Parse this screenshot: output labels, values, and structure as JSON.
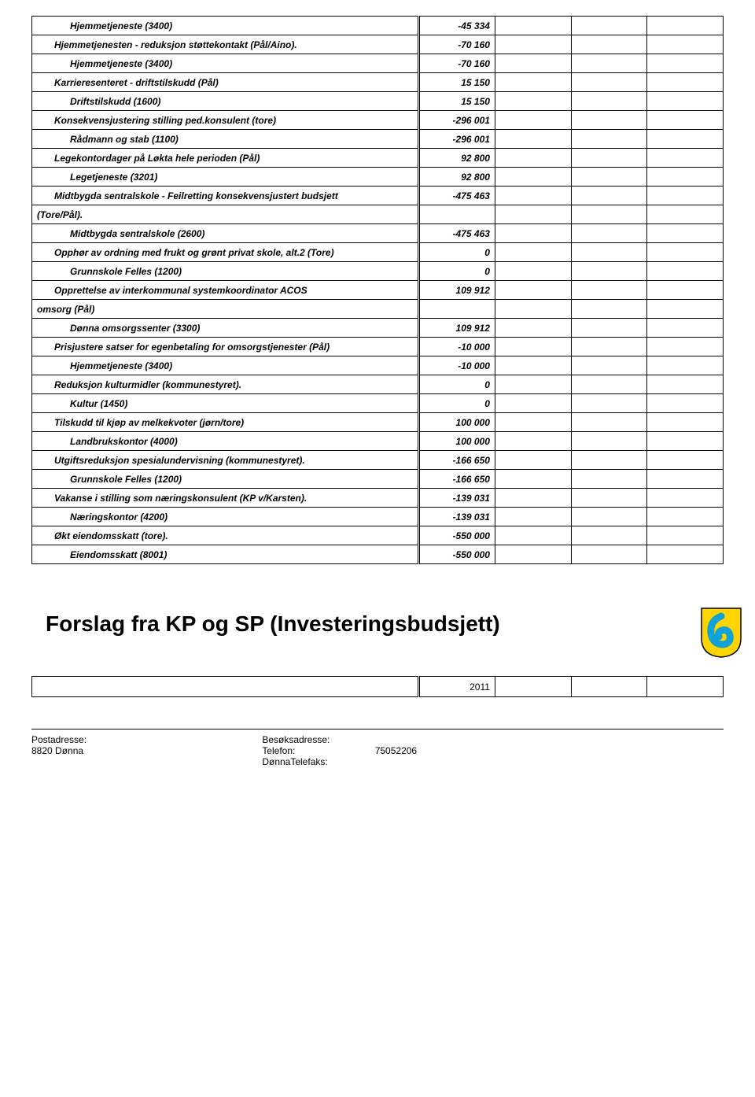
{
  "rows": [
    {
      "label": "Hjemmetjeneste (3400)",
      "value": "-45 334",
      "style": "bold-italic indent-2"
    },
    {
      "label": "Hjemmetjenesten - reduksjon støttekontakt (Pål/Aino).",
      "value": "-70 160",
      "style": "bold-italic indent-1"
    },
    {
      "label": "Hjemmetjeneste (3400)",
      "value": "-70 160",
      "style": "bold-italic indent-2"
    },
    {
      "label": "Karrieresenteret - driftstilskudd (Pål)",
      "value": "15 150",
      "style": "bold-italic indent-1"
    },
    {
      "label": "Driftstilskudd (1600)",
      "value": "15 150",
      "style": "bold-italic indent-2"
    },
    {
      "label": "Konsekvensjustering stilling ped.konsulent (tore)",
      "value": "-296 001",
      "style": "bold-italic indent-1"
    },
    {
      "label": "Rådmann og stab (1100)",
      "value": "-296 001",
      "style": "bold-italic indent-2"
    },
    {
      "label": "Legekontordager på Løkta hele perioden (Pål)",
      "value": "92 800",
      "style": "bold-italic indent-1"
    },
    {
      "label": "Legetjeneste (3201)",
      "value": "92 800",
      "style": "bold-italic indent-2"
    },
    {
      "label": "Midtbygda sentralskole - Feilretting konsekvensjustert budsjett",
      "value": "-475 463",
      "style": "bold-italic indent-1"
    },
    {
      "label": "(Tore/Pål).",
      "value": "",
      "style": "cont"
    },
    {
      "label": "Midtbygda sentralskole (2600)",
      "value": "-475 463",
      "style": "bold-italic indent-2"
    },
    {
      "label": "Opphør av ordning med frukt og grønt privat skole, alt.2 (Tore)",
      "value": "0",
      "style": "bold-italic indent-1"
    },
    {
      "label": "Grunnskole Felles (1200)",
      "value": "0",
      "style": "bold-italic indent-2"
    },
    {
      "label": "Opprettelse av interkommunal systemkoordinator ACOS",
      "value": "109 912",
      "style": "bold-italic indent-1"
    },
    {
      "label": "omsorg (Pål)",
      "value": "",
      "style": "cont"
    },
    {
      "label": "Dønna omsorgssenter (3300)",
      "value": "109 912",
      "style": "bold-italic indent-2"
    },
    {
      "label": "Prisjustere satser for egenbetaling for omsorgstjenester (Pål)",
      "value": "-10 000",
      "style": "bold-italic indent-1"
    },
    {
      "label": "Hjemmetjeneste (3400)",
      "value": "-10 000",
      "style": "bold-italic indent-2"
    },
    {
      "label": "Reduksjon kulturmidler (kommunestyret).",
      "value": "0",
      "style": "bold-italic indent-1"
    },
    {
      "label": "Kultur (1450)",
      "value": "0",
      "style": "bold-italic indent-2"
    },
    {
      "label": "Tilskudd til kjøp av melkekvoter (jørn/tore)",
      "value": "100 000",
      "style": "bold-italic indent-1"
    },
    {
      "label": "Landbrukskontor (4000)",
      "value": "100 000",
      "style": "bold-italic indent-2"
    },
    {
      "label": "Utgiftsreduksjon spesialundervisning (kommunestyret).",
      "value": "-166 650",
      "style": "bold-italic indent-1"
    },
    {
      "label": "Grunnskole Felles (1200)",
      "value": "-166 650",
      "style": "bold-italic indent-2"
    },
    {
      "label": "Vakanse i stilling som næringskonsulent (KP v/Karsten).",
      "value": "-139 031",
      "style": "bold-italic indent-1"
    },
    {
      "label": "Næringskontor (4200)",
      "value": "-139 031",
      "style": "bold-italic indent-2"
    },
    {
      "label": "Økt eiendomsskatt (tore).",
      "value": "-550 000",
      "style": "bold-italic indent-1"
    },
    {
      "label": "Eiendomsskatt (8001)",
      "value": "-550 000",
      "style": "bold-italic indent-2"
    }
  ],
  "heading": "Forslag fra KP og SP (Investeringsbudsjett)",
  "year": "2011",
  "footer": {
    "left1": "Postadresse:",
    "left2": "8820 Dønna",
    "mid1": "Besøksadresse:",
    "mid2a": "Telefon:",
    "mid2b": "DønnaTelefaks:",
    "phone": "75052206"
  },
  "logo": {
    "shield_bg": "#ffd400",
    "swirl": "#13a2d6",
    "border": "#000000"
  }
}
